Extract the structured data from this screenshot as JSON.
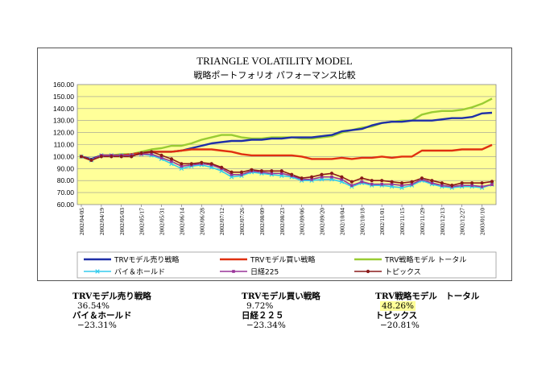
{
  "chart_data": {
    "type": "line",
    "title": "TRIANGLE VOLATILITY MODEL",
    "subtitle": "戦略ポートフォリオ パフォーマンス比較",
    "ylim": [
      60,
      160
    ],
    "yticks": [
      "60.00",
      "70.00",
      "80.00",
      "90.00",
      "100.00",
      "110.00",
      "120.00",
      "130.00",
      "140.00",
      "150.00",
      "160.00"
    ],
    "x": [
      "2002/04/05",
      "2002/04/12",
      "2002/04/19",
      "2002/04/26",
      "2002/05/03",
      "2002/05/10",
      "2002/05/17",
      "2002/05/24",
      "2002/05/31",
      "2002/06/07",
      "2002/06/14",
      "2002/06/21",
      "2002/06/28",
      "2002/07/05",
      "2002/07/12",
      "2002/07/19",
      "2002/07/26",
      "2002/08/02",
      "2002/08/09",
      "2002/08/16",
      "2002/08/23",
      "2002/08/30",
      "2002/09/06",
      "2002/09/13",
      "2002/09/20",
      "2002/09/27",
      "2002/10/04",
      "2002/10/11",
      "2002/10/18",
      "2002/10/25",
      "2002/11/01",
      "2002/11/08",
      "2002/11/15",
      "2002/11/22",
      "2002/11/29",
      "2002/12/06",
      "2002/12/13",
      "2002/12/20",
      "2002/12/27",
      "2003/01/03",
      "2003/01/10",
      "2003/01/17"
    ],
    "xticks": [
      "2002/04/05",
      "2002/04/19",
      "2002/05/03",
      "2002/05/17",
      "2002/05/31",
      "2002/06/14",
      "2002/06/28",
      "2002/07/12",
      "2002/07/26",
      "2002/08/09",
      "2002/08/23",
      "2002/09/06",
      "2002/09/20",
      "2002/10/04",
      "2002/10/18",
      "2002/11/01",
      "2002/11/15",
      "2002/11/29",
      "2002/12/13",
      "2002/12/27",
      "2003/01/10"
    ],
    "grid": "horizontal",
    "plot_background": "#ffff99",
    "legend_position": "bottom",
    "series": [
      {
        "name": "TRVモデル売り戦略",
        "color": "#1f2fa8",
        "marker": "none",
        "values": [
          100,
          98,
          101,
          101,
          101,
          102,
          103,
          104,
          104,
          104,
          105,
          107,
          109,
          111,
          112,
          113,
          113,
          114,
          114,
          115,
          115,
          116,
          116,
          116,
          117,
          118,
          121,
          122,
          123,
          126,
          128,
          129,
          129,
          130,
          130,
          130,
          131,
          132,
          132,
          133,
          136,
          136.5
        ]
      },
      {
        "name": "TRVモデル買い戦略",
        "color": "#e03010",
        "marker": "none",
        "values": [
          100,
          97,
          101,
          101,
          101,
          102,
          103,
          104,
          104,
          104,
          105,
          106,
          106,
          106,
          105,
          104,
          102,
          101,
          101,
          101,
          101,
          101,
          100,
          98,
          98,
          98,
          99,
          98,
          99,
          99,
          100,
          99,
          100,
          100,
          105,
          105,
          105,
          105,
          106,
          106,
          106,
          109.7
        ]
      },
      {
        "name": "TRV戦略モデル トータル",
        "color": "#99cc33",
        "marker": "none",
        "values": [
          100,
          97,
          101,
          101,
          102,
          102,
          104,
          106,
          107,
          109,
          109,
          111,
          114,
          116,
          118,
          118,
          116,
          115,
          115,
          116,
          116,
          116,
          115,
          115,
          116,
          117,
          120,
          122,
          124,
          125,
          128,
          129,
          130,
          130,
          135,
          137,
          138,
          138,
          139,
          141,
          144,
          148.3
        ]
      },
      {
        "name": "バイ＆ホールド",
        "color": "#33ccee",
        "marker": "x",
        "values": [
          100,
          97,
          101,
          101,
          101,
          101,
          102,
          101,
          98,
          94,
          90,
          92,
          93,
          91,
          88,
          83,
          84,
          87,
          86,
          85,
          84,
          83,
          80,
          80,
          81,
          81,
          79,
          75,
          78,
          76,
          76,
          75,
          74,
          76,
          80,
          77,
          75,
          74,
          75,
          75,
          74,
          76.7
        ]
      },
      {
        "name": "日経225",
        "color": "#993399",
        "marker": "square",
        "values": [
          100,
          97,
          101,
          101,
          101,
          101,
          102,
          102,
          99,
          96,
          92,
          93,
          94,
          93,
          90,
          85,
          85,
          88,
          87,
          86,
          86,
          84,
          81,
          81,
          83,
          83,
          81,
          76,
          79,
          77,
          77,
          77,
          76,
          77,
          81,
          78,
          76,
          75,
          76,
          76,
          75,
          76.7
        ]
      },
      {
        "name": "トピックス",
        "color": "#8a1a1a",
        "marker": "circle",
        "values": [
          100,
          97,
          100,
          100,
          100,
          100,
          103,
          104,
          101,
          98,
          94,
          94,
          95,
          94,
          91,
          87,
          87,
          89,
          88,
          88,
          88,
          85,
          82,
          83,
          85,
          86,
          83,
          79,
          82,
          80,
          80,
          79,
          78,
          79,
          82,
          80,
          78,
          76,
          78,
          78,
          78,
          79.2
        ]
      }
    ]
  },
  "summary": [
    {
      "name": "TRVモデル売り戦略",
      "value": "36.54%"
    },
    {
      "name": "TRVモデル買い戦略",
      "value": "9.72%"
    },
    {
      "name": "TRV戦略モデル　トータル",
      "value": "48.26%"
    },
    {
      "name": "バイ＆ホールド",
      "value": "−23.31%"
    },
    {
      "name": "日経２２５",
      "value": "−23.34%"
    },
    {
      "name": "トピックス",
      "value": "−20.81%"
    }
  ]
}
